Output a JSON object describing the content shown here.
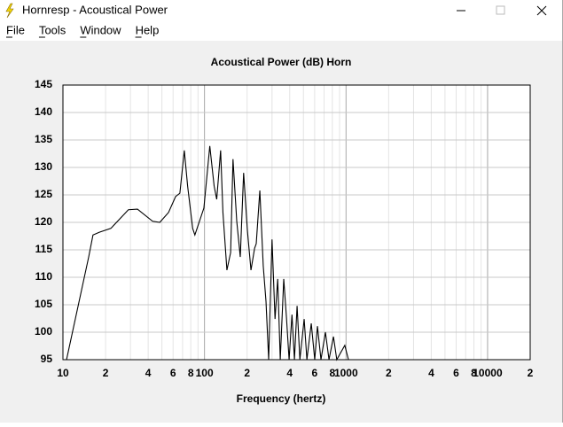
{
  "window": {
    "title": "Hornresp - Acoustical Power"
  },
  "menu": [
    "File",
    "Tools",
    "Window",
    "Help"
  ],
  "chart_data": {
    "type": "line",
    "title": "Acoustical Power (dB)    Horn",
    "x_label": "Frequency (hertz)",
    "x_scale": "log",
    "grid": true,
    "xlim": [
      10,
      20000
    ],
    "ylim": [
      95,
      145
    ],
    "xticks": [
      10,
      {
        "value": 20,
        "label": "2"
      },
      {
        "value": 40,
        "label": "4"
      },
      {
        "value": 60,
        "label": "6"
      },
      {
        "value": 80,
        "label": "8"
      },
      100,
      {
        "value": 200,
        "label": "2"
      },
      {
        "value": 400,
        "label": "4"
      },
      {
        "value": 600,
        "label": "6"
      },
      {
        "value": 800,
        "label": "8"
      },
      1000,
      {
        "value": 2000,
        "label": "2"
      },
      {
        "value": 4000,
        "label": "4"
      },
      {
        "value": 6000,
        "label": "6"
      },
      {
        "value": 8000,
        "label": "8"
      },
      10000,
      {
        "value": 20000,
        "label": "2"
      }
    ],
    "x_minor_ticks": [
      30,
      50,
      70,
      90,
      300,
      500,
      700,
      900,
      3000,
      5000,
      7000,
      9000
    ],
    "yticks": [
      95,
      100,
      105,
      110,
      115,
      120,
      125,
      130,
      135,
      140,
      145
    ],
    "series": [
      {
        "color": "#000000",
        "x": [
          10.6,
          15.2,
          16.3,
          18.1,
          21.8,
          29,
          33.6,
          43,
          48.3,
          55.7,
          62.5,
          67,
          72,
          76,
          82.5,
          85.5,
          99,
          109,
          117,
          122,
          130,
          135,
          144,
          153,
          159,
          169,
          179,
          189,
          201,
          213,
          226,
          232,
          246,
          260,
          272,
          284,
          300,
          315,
          329,
          343,
          363,
          380,
          396,
          415,
          432,
          451,
          472,
          506,
          529,
          568,
          601,
          628,
          665,
          715,
          758,
          815,
          860,
          980,
          1040,
          20000
        ],
        "values": [
          95,
          113.7,
          117.7,
          118.2,
          118.9,
          122.3,
          122.4,
          120.2,
          120,
          121.8,
          124.7,
          125.3,
          133.1,
          126.6,
          118.9,
          117.7,
          122.6,
          133.9,
          126.6,
          124.2,
          133.1,
          121.8,
          111.3,
          114.5,
          131.5,
          120.2,
          113.7,
          129,
          118.5,
          111.3,
          115.3,
          116.1,
          125.8,
          112.1,
          105.6,
          95,
          116.9,
          102.4,
          109.7,
          95,
          109.7,
          102.4,
          95,
          103.2,
          95,
          104.8,
          95,
          102.4,
          95,
          101.6,
          95,
          101.1,
          95,
          100,
          95,
          99.2,
          95,
          97.6,
          95,
          95
        ]
      }
    ]
  }
}
